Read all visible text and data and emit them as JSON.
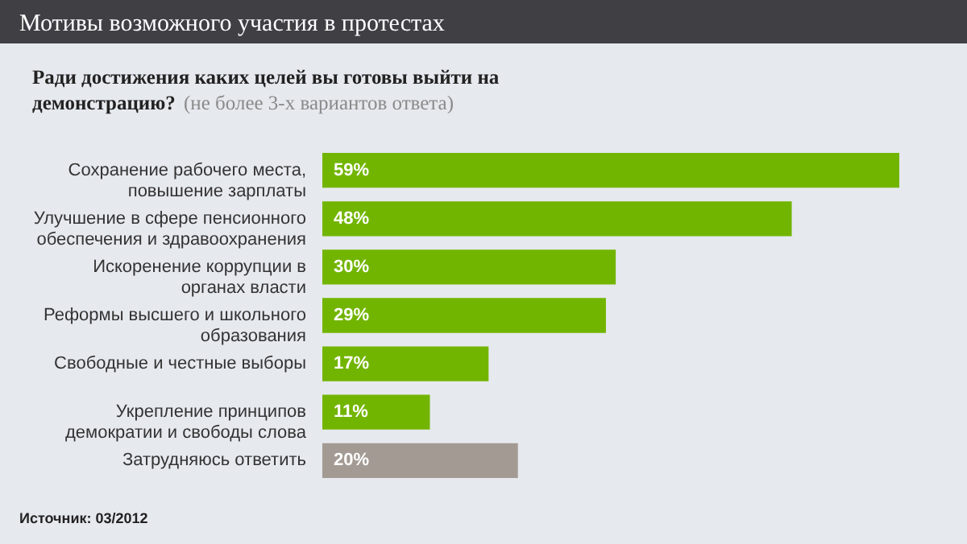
{
  "chart_data": {
    "type": "bar",
    "orientation": "horizontal",
    "title": "Мотивы возможного участия в протестах",
    "subtitle": "Ради достижения каких целей вы готовы выйти на демонстрацию?",
    "annotations": [
      "(не более 3-х вариантов ответа)",
      "Источник: 03/2012"
    ],
    "categories": [
      "Сохранение рабочего места, повышение зарплаты",
      "Улучшение в сфере пенсионного обеспечения и здравоохранения",
      "Искоренение коррупции в органах власти",
      "Реформы высшего и школьного образования",
      "Свободные и честные выборы",
      "Укрепление принципов демократии и свободы слова",
      "Затрудняюсь ответить"
    ],
    "values": [
      59,
      48,
      30,
      29,
      17,
      11,
      20
    ],
    "value_labels": [
      "59%",
      "48%",
      "30%",
      "29%",
      "17%",
      "11%",
      "20%"
    ],
    "colors": [
      "#72b500",
      "#72b500",
      "#72b500",
      "#72b500",
      "#72b500",
      "#72b500",
      "#a39a93"
    ]
  }
}
